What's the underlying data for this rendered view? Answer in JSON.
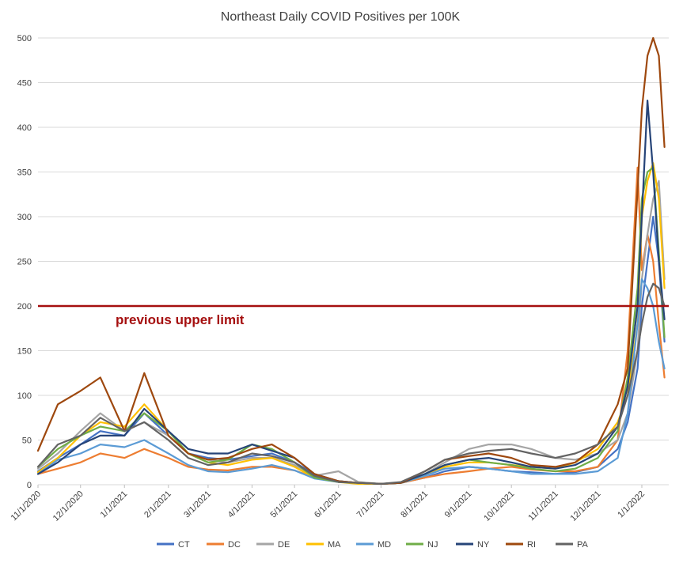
{
  "chart_data": {
    "type": "line",
    "title": "Northeast Daily COVID Positives per 100K",
    "xlabel": "",
    "ylabel": "",
    "ylim": [
      0,
      500
    ],
    "yticks": [
      0,
      50,
      100,
      150,
      200,
      250,
      300,
      350,
      400,
      450,
      500
    ],
    "x_tick_labels": [
      "11/1/2020",
      "12/1/2020",
      "1/1/2021",
      "2/1/2021",
      "3/1/2021",
      "4/1/2021",
      "5/1/2021",
      "6/1/2021",
      "7/1/2021",
      "8/1/2021",
      "9/1/2021",
      "10/1/2021",
      "11/1/2021",
      "12/1/2021",
      "1/1/2022"
    ],
    "x": [
      "11/1/2020",
      "11/15/2020",
      "12/1/2020",
      "12/15/2020",
      "1/1/2021",
      "1/15/2021",
      "2/1/2021",
      "2/15/2021",
      "3/1/2021",
      "3/15/2021",
      "4/1/2021",
      "4/15/2021",
      "5/1/2021",
      "5/15/2021",
      "6/1/2021",
      "6/15/2021",
      "7/1/2021",
      "7/15/2021",
      "8/1/2021",
      "8/15/2021",
      "9/1/2021",
      "9/15/2021",
      "10/1/2021",
      "10/15/2021",
      "11/1/2021",
      "11/15/2021",
      "12/1/2021",
      "12/15/2021",
      "12/22/2021",
      "12/29/2021",
      "1/1/2022",
      "1/5/2022",
      "1/9/2022",
      "1/13/2022",
      "1/17/2022"
    ],
    "grid": "horizontal",
    "legend_position": "bottom",
    "reference_line": {
      "value": 200,
      "label": "previous upper limit",
      "color": "#a50f0f"
    },
    "series": [
      {
        "name": "CT",
        "color": "#4472c4",
        "values": [
          15,
          30,
          45,
          60,
          55,
          80,
          55,
          35,
          30,
          28,
          32,
          35,
          25,
          12,
          4,
          2,
          1,
          2,
          8,
          15,
          20,
          18,
          15,
          14,
          12,
          14,
          20,
          40,
          70,
          130,
          200,
          250,
          300,
          250,
          160
        ]
      },
      {
        "name": "DC",
        "color": "#ed7d31",
        "values": [
          12,
          18,
          25,
          35,
          30,
          40,
          30,
          20,
          17,
          16,
          20,
          20,
          16,
          8,
          3,
          2,
          1,
          2,
          8,
          12,
          15,
          18,
          20,
          17,
          15,
          15,
          20,
          50,
          150,
          355,
          240,
          280,
          250,
          180,
          120
        ]
      },
      {
        "name": "DE",
        "color": "#a5a5a5",
        "values": [
          18,
          35,
          60,
          80,
          60,
          70,
          55,
          35,
          28,
          25,
          30,
          30,
          22,
          10,
          15,
          3,
          1,
          2,
          12,
          25,
          40,
          45,
          45,
          40,
          30,
          28,
          35,
          50,
          80,
          150,
          230,
          280,
          320,
          340,
          230
        ]
      },
      {
        "name": "MA",
        "color": "#ffc000",
        "values": [
          14,
          30,
          55,
          70,
          65,
          90,
          60,
          35,
          25,
          22,
          28,
          30,
          20,
          8,
          3,
          1,
          1,
          2,
          10,
          20,
          25,
          25,
          22,
          20,
          18,
          25,
          40,
          70,
          100,
          180,
          300,
          340,
          360,
          320,
          220
        ]
      },
      {
        "name": "MD",
        "color": "#5b9bd5",
        "values": [
          12,
          28,
          35,
          45,
          42,
          50,
          35,
          22,
          15,
          14,
          18,
          22,
          16,
          7,
          3,
          2,
          1,
          2,
          10,
          18,
          20,
          18,
          15,
          12,
          12,
          12,
          15,
          30,
          80,
          180,
          230,
          220,
          200,
          160,
          130
        ]
      },
      {
        "name": "NJ",
        "color": "#70ad47",
        "values": [
          20,
          40,
          55,
          65,
          60,
          80,
          60,
          35,
          25,
          28,
          45,
          40,
          25,
          8,
          3,
          2,
          1,
          2,
          12,
          22,
          28,
          25,
          22,
          18,
          15,
          18,
          30,
          60,
          120,
          220,
          320,
          350,
          355,
          260,
          165
        ]
      },
      {
        "name": "NY",
        "color": "#264478",
        "values": [
          12,
          25,
          45,
          55,
          55,
          85,
          60,
          40,
          35,
          35,
          45,
          38,
          30,
          12,
          4,
          2,
          1,
          2,
          12,
          22,
          28,
          30,
          25,
          20,
          18,
          22,
          35,
          65,
          110,
          200,
          300,
          430,
          350,
          250,
          185
        ]
      },
      {
        "name": "RI",
        "color": "#9e480e",
        "values": [
          38,
          90,
          105,
          120,
          60,
          125,
          55,
          35,
          28,
          30,
          40,
          45,
          30,
          12,
          4,
          2,
          1,
          2,
          15,
          28,
          32,
          35,
          30,
          22,
          20,
          25,
          45,
          90,
          130,
          330,
          420,
          480,
          500,
          480,
          378
        ]
      },
      {
        "name": "PA",
        "color": "#636363",
        "values": [
          20,
          45,
          55,
          75,
          60,
          70,
          50,
          30,
          22,
          25,
          35,
          32,
          25,
          10,
          3,
          2,
          1,
          3,
          15,
          28,
          35,
          38,
          40,
          35,
          30,
          35,
          45,
          65,
          100,
          150,
          180,
          210,
          225,
          220,
          200
        ]
      }
    ]
  }
}
